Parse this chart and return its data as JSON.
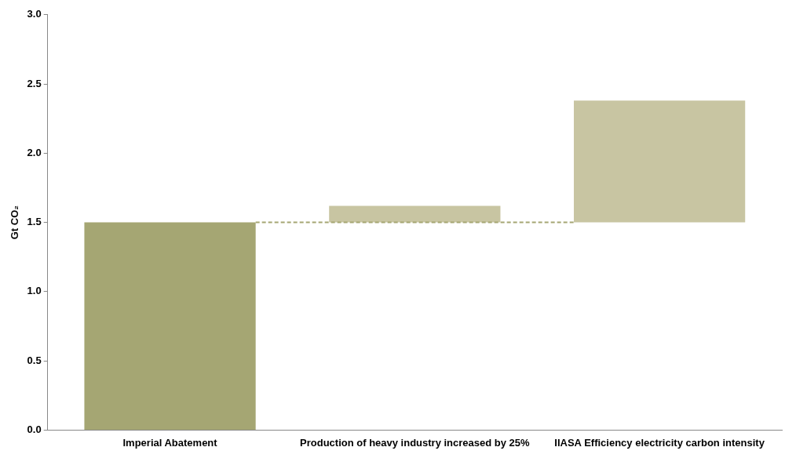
{
  "chart_data": {
    "type": "bar",
    "categories": [
      "Imperial Abatement",
      "Production of heavy industry increased by 25%",
      "IIASA Efficiency electricity carbon intensity"
    ],
    "values": [
      1.5,
      0.12,
      0.88
    ],
    "base": [
      0,
      1.5,
      1.5
    ],
    "colors": [
      "#a5a673",
      "#c8c5a2",
      "#c8c5a2"
    ],
    "ylabel": "Gt CO₂",
    "ylim": [
      0,
      3
    ],
    "yticks": [
      {
        "value": 0,
        "label": "0.0"
      },
      {
        "value": 0.5,
        "label": "0.5"
      },
      {
        "value": 1,
        "label": "1.0"
      },
      {
        "value": 1.5,
        "label": "1.5"
      },
      {
        "value": 2,
        "label": "2.0"
      },
      {
        "value": 2.5,
        "label": "2.5"
      },
      {
        "value": 3,
        "label": "3.0"
      }
    ],
    "ref_lines": [
      {
        "axis": "y",
        "value": 1.5,
        "color": "#a5a673",
        "line_style": "dashed"
      }
    ],
    "grid": false,
    "legend": false
  }
}
